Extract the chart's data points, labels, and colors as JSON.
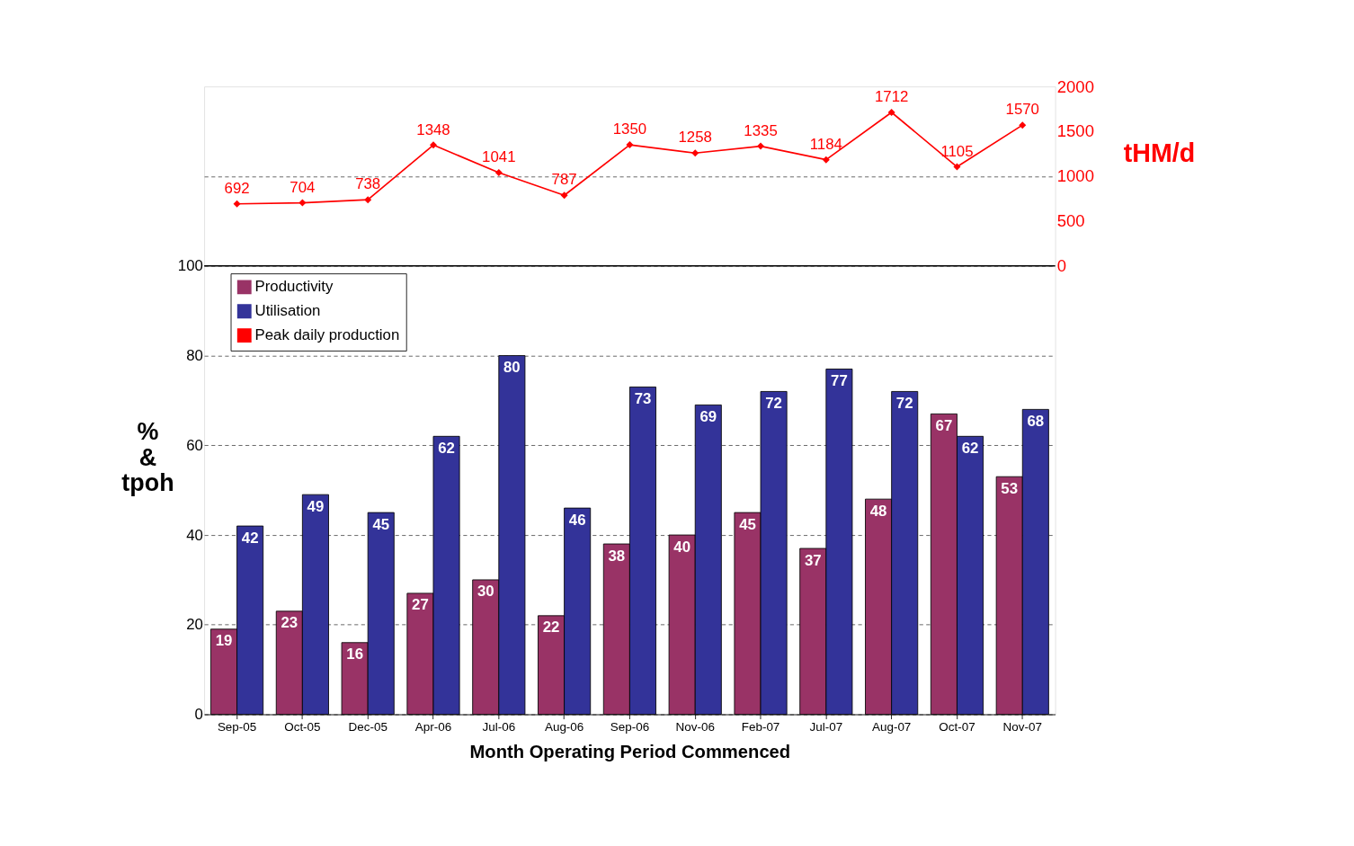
{
  "chart_data": {
    "type": "bar",
    "categories": [
      "Sep-05",
      "Oct-05",
      "Dec-05",
      "Apr-06",
      "Jul-06",
      "Aug-06",
      "Sep-06",
      "Nov-06",
      "Feb-07",
      "Jul-07",
      "Aug-07",
      "Oct-07",
      "Nov-07"
    ],
    "series": [
      {
        "name": "Productivity",
        "color": "#993366",
        "values": [
          19,
          23,
          16,
          27,
          30,
          22,
          38,
          40,
          45,
          37,
          48,
          67,
          53
        ]
      },
      {
        "name": "Utilisation",
        "color": "#333399",
        "values": [
          42,
          49,
          45,
          62,
          80,
          46,
          73,
          69,
          72,
          77,
          72,
          62,
          68
        ]
      },
      {
        "name": "Peak daily production",
        "color": "#ff0000",
        "type": "line",
        "axis": "y2",
        "marker": "diamond",
        "values": [
          692,
          704,
          738,
          1348,
          1041,
          787,
          1350,
          1258,
          1335,
          1184,
          1712,
          1105,
          1570
        ]
      }
    ],
    "ylim": [
      0,
      140
    ],
    "yticks": [
      0,
      20,
      40,
      60,
      80,
      100,
      {
        "value": 120,
        "label": null
      }
    ],
    "y2lim": [
      -5000,
      2000
    ],
    "y2ticks": [
      0,
      500,
      1000,
      1500,
      2000
    ],
    "xlabel": "Month Operating Period Commenced",
    "ylabel": "%\n&\ntpoh",
    "y2label": "tHM/d",
    "ref_lines": [
      {
        "axis": "y",
        "value": 100,
        "color": "#000000",
        "line_style": "solid"
      }
    ],
    "grid": "y",
    "legend": "top left",
    "data_labels": true
  }
}
